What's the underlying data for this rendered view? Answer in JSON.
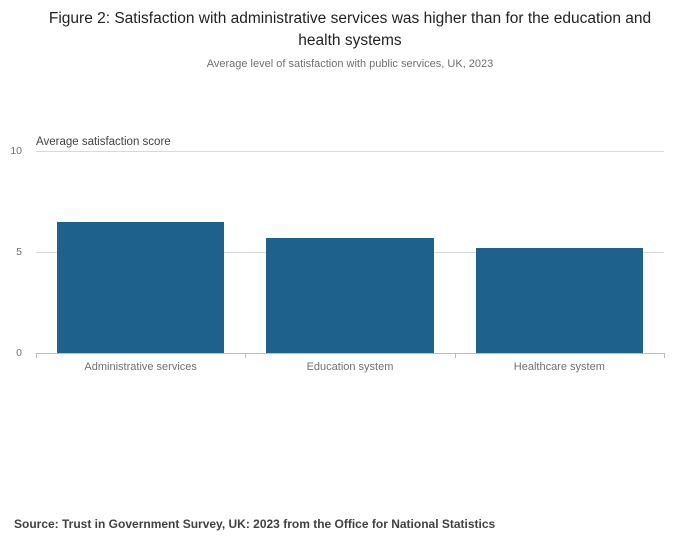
{
  "figure": {
    "title": "Figure 2: Satisfaction with administrative services was higher than for the education and health systems",
    "subtitle": "Average level of satisfaction with public services, UK, 2023",
    "source": "Source: Trust in Government Survey, UK: 2023 from the Office for National Statistics"
  },
  "chart_data": {
    "type": "bar",
    "title": "Figure 2: Satisfaction with administrative services was higher than for the education and health systems",
    "subtitle": "Average level of satisfaction with public services, UK, 2023",
    "categories": [
      "Administrative services",
      "Education system",
      "Healthcare system"
    ],
    "values": [
      6.5,
      5.7,
      5.2
    ],
    "ylabel": "Average satisfaction score",
    "xlabel": "",
    "ylim": [
      0,
      10
    ],
    "yticks": [
      0,
      5,
      10
    ],
    "grid": true,
    "legend_position": "none",
    "bar_color": "#1f618d",
    "source": "Source: Trust in Government Survey, UK: 2023 from the Office for National Statistics"
  }
}
